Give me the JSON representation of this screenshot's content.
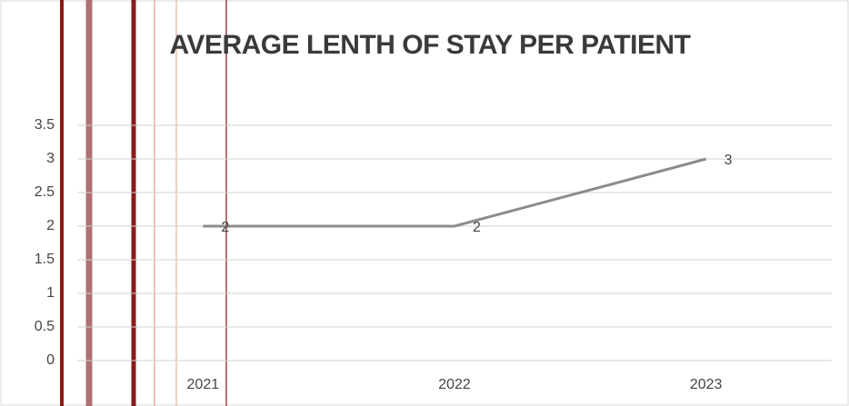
{
  "chart_data": {
    "type": "line",
    "title": "AVERAGE LENTH OF STAY PER PATIENT",
    "categories": [
      "2021",
      "2022",
      "2023"
    ],
    "values": [
      2,
      2,
      3
    ],
    "color": "#8c8c8c",
    "ylim": [
      0,
      3.5
    ],
    "yticks": [
      0,
      0.5,
      1,
      1.5,
      2,
      2.5,
      3,
      3.5
    ],
    "grid": true
  }
}
